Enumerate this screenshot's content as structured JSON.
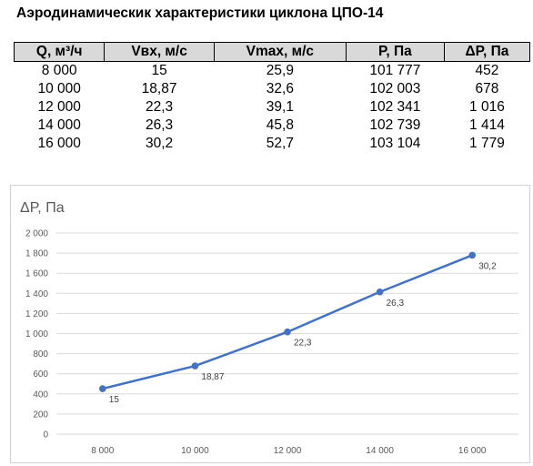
{
  "title": "Аэродинамическик характеристики циклона ЦПО-14",
  "table": {
    "headers": [
      "Q, м³/ч",
      "Vвх, м/с",
      "Vmax, м/с",
      "P, Па",
      "ΔP, Па"
    ],
    "rows": [
      [
        "8 000",
        "15",
        "25,9",
        "101 777",
        "452"
      ],
      [
        "10 000",
        "18,87",
        "32,6",
        "102 003",
        "678"
      ],
      [
        "12 000",
        "22,3",
        "39,1",
        "102 341",
        "1 016"
      ],
      [
        "14 000",
        "26,3",
        "45,8",
        "102 739",
        "1 414"
      ],
      [
        "16 000",
        "30,2",
        "52,7",
        "103 104",
        "1 779"
      ]
    ]
  },
  "chart_data": {
    "type": "line",
    "title": "",
    "xlabel": "",
    "ylabel": "ΔP, Па",
    "categories": [
      "8 000",
      "10 000",
      "12 000",
      "14 000",
      "16 000"
    ],
    "series": [
      {
        "values": [
          452,
          678,
          1016,
          1414,
          1779
        ],
        "color": "#4472c4"
      }
    ],
    "data_labels": [
      "15",
      "18,87",
      "22,3",
      "26,3",
      "30,2"
    ],
    "ylim": [
      0,
      2000
    ],
    "y_ticks": [
      "0",
      "200",
      "400",
      "600",
      "800",
      "1 000",
      "1 200",
      "1 400",
      "1 600",
      "1 800",
      "2 000"
    ],
    "grid": true,
    "legend": "none"
  }
}
